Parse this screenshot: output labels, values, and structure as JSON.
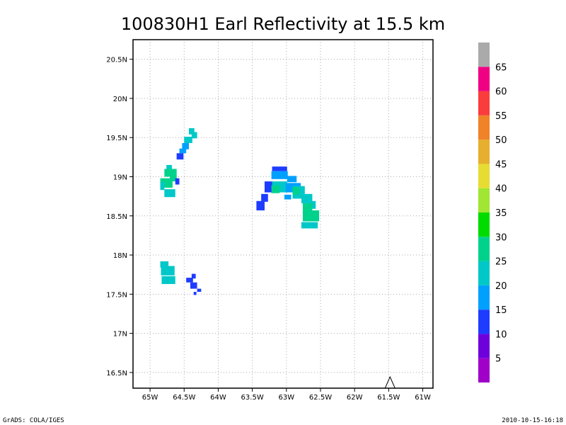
{
  "chart_data": {
    "type": "heatmap",
    "title": "100830H1 Earl Reflectivity at 15.5 km",
    "xlim": [
      -65.25,
      -60.85
    ],
    "ylim": [
      16.3,
      20.75
    ],
    "x_ticks": [
      {
        "value": -65.0,
        "label": "65W"
      },
      {
        "value": -64.5,
        "label": "64.5W"
      },
      {
        "value": -64.0,
        "label": "64W"
      },
      {
        "value": -63.5,
        "label": "63.5W"
      },
      {
        "value": -63.0,
        "label": "63W"
      },
      {
        "value": -62.5,
        "label": "62.5W"
      },
      {
        "value": -62.0,
        "label": "62W"
      },
      {
        "value": -61.5,
        "label": "61.5W"
      },
      {
        "value": -61.0,
        "label": "61W"
      }
    ],
    "y_ticks": [
      {
        "value": 16.5,
        "label": "16.5N"
      },
      {
        "value": 17.0,
        "label": "17N"
      },
      {
        "value": 17.5,
        "label": "17.5N"
      },
      {
        "value": 18.0,
        "label": "18N"
      },
      {
        "value": 18.5,
        "label": "18.5N"
      },
      {
        "value": 19.0,
        "label": "19N"
      },
      {
        "value": 19.5,
        "label": "19.5N"
      },
      {
        "value": 20.0,
        "label": "20N"
      },
      {
        "value": 20.5,
        "label": "20.5N"
      }
    ],
    "grid": true,
    "legend_position": "right",
    "colorbar": {
      "levels": [
        {
          "from": 0,
          "to": 5,
          "color": "#a000c8",
          "label": "5"
        },
        {
          "from": 5,
          "to": 10,
          "color": "#6e00dc",
          "label": "10"
        },
        {
          "from": 10,
          "to": 15,
          "color": "#1e3cff",
          "label": "15"
        },
        {
          "from": 15,
          "to": 20,
          "color": "#00a0ff",
          "label": "20"
        },
        {
          "from": 20,
          "to": 25,
          "color": "#00c8c8",
          "label": "25"
        },
        {
          "from": 25,
          "to": 30,
          "color": "#00d28c",
          "label": "30"
        },
        {
          "from": 30,
          "to": 35,
          "color": "#00dc00",
          "label": "35"
        },
        {
          "from": 35,
          "to": 40,
          "color": "#a0e632",
          "label": "40"
        },
        {
          "from": 40,
          "to": 45,
          "color": "#e6dc32",
          "label": "45"
        },
        {
          "from": 45,
          "to": 50,
          "color": "#e6af2d",
          "label": "50"
        },
        {
          "from": 50,
          "to": 55,
          "color": "#f08228",
          "label": "55"
        },
        {
          "from": 55,
          "to": 60,
          "color": "#fa3c3c",
          "label": "60"
        },
        {
          "from": 60,
          "to": 65,
          "color": "#f00082",
          "label": "65"
        },
        {
          "from": 65,
          "to": 70,
          "color": "#aaaaaa",
          "label": ""
        }
      ]
    },
    "echo_cells": [
      {
        "lon": -64.39,
        "lat": 19.58,
        "w": 0.08,
        "h": 0.08,
        "dbz": 22
      },
      {
        "lon": -64.35,
        "lat": 19.53,
        "w": 0.08,
        "h": 0.08,
        "dbz": 22
      },
      {
        "lon": -64.44,
        "lat": 19.47,
        "w": 0.12,
        "h": 0.08,
        "dbz": 22
      },
      {
        "lon": -64.48,
        "lat": 19.39,
        "w": 0.1,
        "h": 0.08,
        "dbz": 18
      },
      {
        "lon": -64.52,
        "lat": 19.33,
        "w": 0.1,
        "h": 0.06,
        "dbz": 18
      },
      {
        "lon": -64.56,
        "lat": 19.26,
        "w": 0.1,
        "h": 0.08,
        "dbz": 12
      },
      {
        "lon": -64.72,
        "lat": 19.12,
        "w": 0.08,
        "h": 0.06,
        "dbz": 22
      },
      {
        "lon": -64.7,
        "lat": 19.05,
        "w": 0.18,
        "h": 0.1,
        "dbz": 25
      },
      {
        "lon": -64.66,
        "lat": 18.98,
        "w": 0.1,
        "h": 0.08,
        "dbz": 27
      },
      {
        "lon": -64.76,
        "lat": 18.92,
        "w": 0.18,
        "h": 0.12,
        "dbz": 25
      },
      {
        "lon": -64.82,
        "lat": 18.88,
        "w": 0.06,
        "h": 0.1,
        "dbz": 22
      },
      {
        "lon": -64.6,
        "lat": 18.94,
        "w": 0.06,
        "h": 0.08,
        "dbz": 12
      },
      {
        "lon": -64.71,
        "lat": 18.79,
        "w": 0.16,
        "h": 0.1,
        "dbz": 22
      },
      {
        "lon": -64.79,
        "lat": 17.88,
        "w": 0.12,
        "h": 0.08,
        "dbz": 22
      },
      {
        "lon": -64.74,
        "lat": 17.8,
        "w": 0.2,
        "h": 0.12,
        "dbz": 22
      },
      {
        "lon": -64.73,
        "lat": 17.68,
        "w": 0.2,
        "h": 0.1,
        "dbz": 22
      },
      {
        "lon": -64.36,
        "lat": 17.73,
        "w": 0.06,
        "h": 0.06,
        "dbz": 12
      },
      {
        "lon": -64.42,
        "lat": 17.68,
        "w": 0.1,
        "h": 0.06,
        "dbz": 12
      },
      {
        "lon": -64.36,
        "lat": 17.61,
        "w": 0.1,
        "h": 0.08,
        "dbz": 12
      },
      {
        "lon": -64.28,
        "lat": 17.55,
        "w": 0.06,
        "h": 0.04,
        "dbz": 12
      },
      {
        "lon": -64.34,
        "lat": 17.51,
        "w": 0.04,
        "h": 0.04,
        "dbz": 12
      },
      {
        "lon": -63.1,
        "lat": 19.1,
        "w": 0.22,
        "h": 0.06,
        "dbz": 12
      },
      {
        "lon": -63.1,
        "lat": 19.02,
        "w": 0.24,
        "h": 0.1,
        "dbz": 15
      },
      {
        "lon": -62.92,
        "lat": 18.97,
        "w": 0.14,
        "h": 0.08,
        "dbz": 18
      },
      {
        "lon": -63.26,
        "lat": 18.87,
        "w": 0.12,
        "h": 0.14,
        "dbz": 12
      },
      {
        "lon": -63.1,
        "lat": 18.87,
        "w": 0.22,
        "h": 0.14,
        "dbz": 22
      },
      {
        "lon": -63.16,
        "lat": 18.84,
        "w": 0.12,
        "h": 0.1,
        "dbz": 25
      },
      {
        "lon": -62.9,
        "lat": 18.86,
        "w": 0.22,
        "h": 0.12,
        "dbz": 18
      },
      {
        "lon": -62.82,
        "lat": 18.8,
        "w": 0.18,
        "h": 0.16,
        "dbz": 22
      },
      {
        "lon": -62.86,
        "lat": 18.82,
        "w": 0.1,
        "h": 0.1,
        "dbz": 25
      },
      {
        "lon": -63.32,
        "lat": 18.73,
        "w": 0.1,
        "h": 0.1,
        "dbz": 12
      },
      {
        "lon": -63.38,
        "lat": 18.63,
        "w": 0.12,
        "h": 0.12,
        "dbz": 12
      },
      {
        "lon": -62.98,
        "lat": 18.74,
        "w": 0.1,
        "h": 0.06,
        "dbz": 15
      },
      {
        "lon": -62.7,
        "lat": 18.72,
        "w": 0.16,
        "h": 0.12,
        "dbz": 22
      },
      {
        "lon": -62.63,
        "lat": 18.64,
        "w": 0.12,
        "h": 0.1,
        "dbz": 22
      },
      {
        "lon": -62.69,
        "lat": 18.6,
        "w": 0.14,
        "h": 0.12,
        "dbz": 27
      },
      {
        "lon": -62.64,
        "lat": 18.5,
        "w": 0.24,
        "h": 0.14,
        "dbz": 25
      },
      {
        "lon": -62.66,
        "lat": 18.38,
        "w": 0.24,
        "h": 0.08,
        "dbz": 22
      }
    ]
  },
  "footer": {
    "left": "GrADS: COLA/IGES",
    "right": "2010-10-15-16:18"
  },
  "marker": {
    "lon": -61.48,
    "lat": 16.3,
    "shape": "triangle-outline"
  }
}
